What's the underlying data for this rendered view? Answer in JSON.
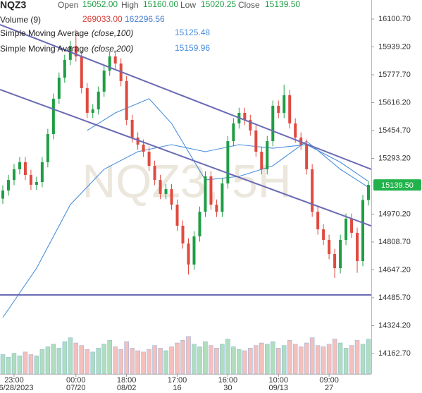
{
  "chart_data": {
    "type": "candlestick",
    "watermark": "NQZ3, 5H",
    "header": {
      "symbol": "NQZ3",
      "open_title": "Open",
      "open": "15052.00",
      "high_title": "High",
      "high": "15160.00",
      "low_title": "Low",
      "low": "15020.25",
      "close_title": "Close",
      "close": "15139.50"
    },
    "up_color": "#1e9e44",
    "down_color": "#e04a3f",
    "xlim": [
      -0.5,
      65.5
    ],
    "ylim": [
      14044,
      16211
    ],
    "yticks": [
      {
        "value": 16100.7,
        "label": "16100.70"
      },
      {
        "value": 15939.2,
        "label": "15939.20"
      },
      {
        "value": 15777.7,
        "label": "15777.70"
      },
      {
        "value": 15616.2,
        "label": "15616.20"
      },
      {
        "value": 15454.7,
        "label": "15454.70"
      },
      {
        "value": 15293.2,
        "label": "15293.20"
      },
      {
        "value": 14970.2,
        "label": "14970.20"
      },
      {
        "value": 14808.7,
        "label": "14808.70"
      },
      {
        "value": 14647.2,
        "label": "14647.20"
      },
      {
        "value": 14485.7,
        "label": "14485.70"
      },
      {
        "value": 14324.2,
        "label": "14324.20"
      },
      {
        "value": 14162.7,
        "label": "14162.70"
      }
    ],
    "xticks": [
      {
        "value": 2,
        "label": "23:00",
        "date": "06/28/2023"
      },
      {
        "value": 13,
        "label": "00:00",
        "date": "07/20"
      },
      {
        "value": 22,
        "label": "18:00",
        "date": "08/02"
      },
      {
        "value": 31,
        "label": "17:00",
        "date": "16"
      },
      {
        "value": 40,
        "label": "16:00",
        "date": "30"
      },
      {
        "value": 49,
        "label": "10:00",
        "date": "09/13"
      },
      {
        "value": 58,
        "label": "09:00",
        "date": "27"
      }
    ],
    "open": [
      15060,
      15107,
      15168,
      15230,
      15271,
      15197,
      15140,
      15156,
      15271,
      15434,
      15639,
      15761,
      15864,
      15945,
      15884,
      15700,
      15557,
      15577,
      15680,
      15802,
      15884,
      15843,
      15741,
      15516,
      15414,
      15373,
      15332,
      15250,
      15168,
      15087,
      15115,
      15025,
      14903,
      14800,
      14678,
      14841,
      14984,
      15189,
      15025,
      14984,
      15148,
      15393,
      15496,
      15557,
      15516,
      15455,
      15332,
      15230,
      15393,
      15598,
      15557,
      15659,
      15496,
      15414,
      15373,
      15230,
      14984,
      14882,
      14821,
      14739,
      14657,
      14821,
      14944,
      14862,
      14698,
      15052
    ],
    "high": [
      15137,
      15198,
      15260,
      15301,
      15301,
      15227,
      15186,
      15301,
      15464,
      15669,
      15791,
      15894,
      15975,
      16040,
      15914,
      15730,
      15607,
      15710,
      15832,
      15914,
      15914,
      15873,
      15771,
      15546,
      15444,
      15403,
      15362,
      15280,
      15198,
      15145,
      15145,
      15055,
      14933,
      14830,
      14871,
      15014,
      15219,
      15219,
      15055,
      15178,
      15423,
      15526,
      15587,
      15587,
      15546,
      15485,
      15362,
      15423,
      15628,
      15628,
      15720,
      15689,
      15526,
      15444,
      15403,
      15260,
      15014,
      14912,
      14851,
      14769,
      14851,
      14974,
      14974,
      14892,
      15082,
      15160
    ],
    "low": [
      15030,
      15077,
      15138,
      15200,
      15167,
      15110,
      15110,
      15126,
      15241,
      15404,
      15609,
      15731,
      15834,
      15854,
      15670,
      15527,
      15527,
      15547,
      15650,
      15772,
      15813,
      15711,
      15486,
      15384,
      15343,
      15302,
      15220,
      15138,
      15057,
      15057,
      14995,
      14873,
      14770,
      14620,
      14648,
      14811,
      14954,
      14995,
      14954,
      14954,
      15118,
      15363,
      15466,
      15486,
      15425,
      15302,
      15200,
      15200,
      15363,
      15527,
      15527,
      15466,
      15384,
      15343,
      15200,
      14954,
      14852,
      14791,
      14709,
      14600,
      14627,
      14791,
      14832,
      14630,
      14668,
      15020.25
    ],
    "close": [
      15107,
      15168,
      15230,
      15271,
      15197,
      15140,
      15156,
      15271,
      15434,
      15639,
      15761,
      15864,
      15945,
      15884,
      15700,
      15557,
      15577,
      15680,
      15802,
      15884,
      15843,
      15741,
      15516,
      15414,
      15373,
      15332,
      15250,
      15168,
      15087,
      15115,
      15025,
      14903,
      14800,
      14678,
      14841,
      14984,
      15189,
      15025,
      14984,
      15148,
      15393,
      15496,
      15557,
      15516,
      15455,
      15332,
      15230,
      15393,
      15598,
      15557,
      15659,
      15496,
      15414,
      15373,
      15230,
      14984,
      14882,
      14821,
      14739,
      14657,
      14821,
      14944,
      14862,
      14698,
      15052,
      15139.5
    ],
    "volume": {
      "name": "Volume (9)",
      "last_label": "269033.00",
      "ma_label": "162296.56",
      "last_color": "#d9403a",
      "ma_color": "#4a7fd0",
      "vlim": [
        0,
        300000
      ],
      "values": [
        150000,
        130000,
        160000,
        140000,
        170000,
        150000,
        140000,
        190000,
        210000,
        230000,
        200000,
        250000,
        280000,
        240000,
        220000,
        190000,
        170000,
        200000,
        230000,
        260000,
        210000,
        190000,
        250000,
        200000,
        180000,
        170000,
        190000,
        220000,
        200000,
        180000,
        210000,
        240000,
        260000,
        290000,
        230000,
        210000,
        250000,
        220000,
        200000,
        230000,
        270000,
        210000,
        190000,
        180000,
        200000,
        220000,
        240000,
        230000,
        250000,
        200000,
        220000,
        260000,
        230000,
        210000,
        240000,
        280000,
        220000,
        210000,
        230000,
        270000,
        240000,
        200000,
        220000,
        260000,
        230000,
        269033
      ]
    },
    "moving_averages": [
      {
        "name": "Simple Moving Average",
        "params": "(close,100)",
        "value_label": "15125.48",
        "color": "#4a8fdc",
        "x": [
          15,
          20,
          26,
          30,
          36,
          42,
          48,
          54,
          60,
          65
        ],
        "values": [
          15455,
          15557,
          15639,
          15496,
          15168,
          15189,
          15250,
          15393,
          15230,
          15125.48
        ]
      },
      {
        "name": "Simple Moving Average",
        "params": "(close,200)",
        "value_label": "15159.96",
        "color": "#4a8fdc",
        "x": [
          0,
          6,
          12,
          18,
          24,
          30,
          36,
          42,
          48,
          54,
          60,
          65
        ],
        "values": [
          14371,
          14657,
          15025,
          15230,
          15332,
          15373,
          15332,
          15373,
          15352,
          15373,
          15271,
          15159.96
        ]
      }
    ],
    "trendlines": [
      {
        "color": "#6b6bb5",
        "x": [
          -0.5,
          65.5
        ],
        "values": [
          16068,
          15230
        ]
      },
      {
        "color": "#6b6bb5",
        "x": [
          -0.5,
          65.5
        ],
        "values": [
          15692,
          14902
        ]
      },
      {
        "color": "#6b6bb5",
        "x": [
          -0.5,
          65.5
        ],
        "values": [
          14502,
          14502
        ]
      }
    ],
    "last_price": {
      "value": 15139.5,
      "label": "15139.50",
      "color": "#22b24c"
    }
  }
}
